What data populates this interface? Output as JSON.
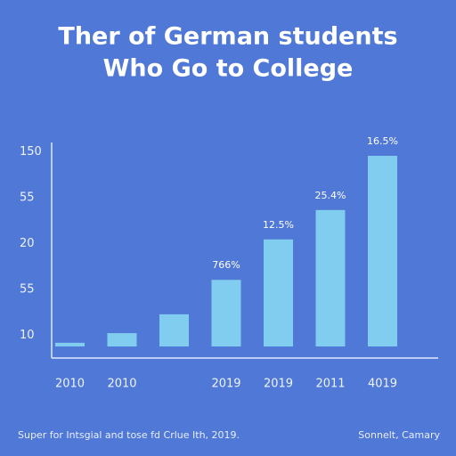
{
  "chart_data": {
    "type": "bar",
    "title": [
      "Ther of German students",
      "Who Go to College"
    ],
    "categories": [
      "2010",
      "2010",
      null,
      "2019",
      "2019",
      "2011",
      "4019"
    ],
    "values": [
      8.4,
      10.5,
      14.6,
      22.1,
      30.9,
      37.3,
      49.1
    ],
    "color": "#80cdef",
    "ylim": [
      7.6,
      52
    ],
    "yticks": [
      10,
      {
        "value": 20,
        "label": "55"
      },
      {
        "value": 30,
        "label": "20"
      },
      {
        "value": 40,
        "label": "55"
      },
      {
        "value": 50,
        "label": "150"
      }
    ],
    "annotations": [
      "766%",
      "12.5%",
      "25.4%",
      "16.5%"
    ],
    "footer": {
      "source": "Super for Intsgial and tose fd Crlue Ith, 2019.",
      "credit": "Sonnelt, Camary"
    }
  }
}
